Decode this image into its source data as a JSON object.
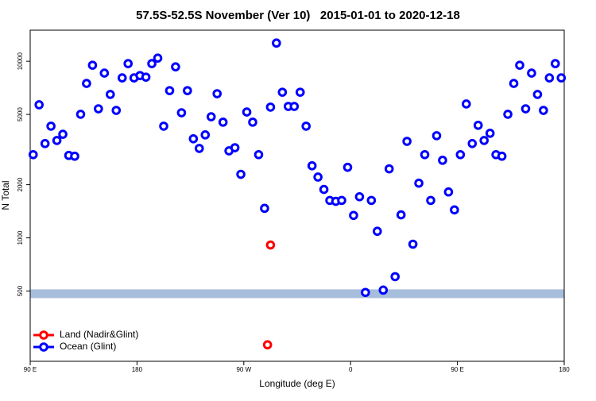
{
  "chart_data": {
    "type": "scatter",
    "title": "57.5S-52.5S November (Ver 10)   2015-01-01 to 2020-12-18",
    "xlabel": "Longitude (deg E)",
    "ylabel": "N Total",
    "xlim": [
      90,
      540
    ],
    "xticks": [
      {
        "value": 90,
        "label": "90 E"
      },
      {
        "value": 180,
        "label": "180"
      },
      {
        "value": 270,
        "label": "90 W"
      },
      {
        "value": 360,
        "label": "0"
      },
      {
        "value": 450,
        "label": "90 E"
      },
      {
        "value": 540,
        "label": "180"
      }
    ],
    "ylim": [
      200,
      15000
    ],
    "log_y": true,
    "yticks": [
      500,
      1000,
      2000,
      5000,
      10000
    ],
    "band": [
      456,
      511
    ],
    "band_color": "#a6bddb",
    "legend": "bottom-left",
    "series": [
      {
        "name": "Land (Nadir&Glint)",
        "color": "#ff0000",
        "x": [
          292.5,
          290
        ],
        "values": [
          911,
          248
        ]
      },
      {
        "name": "Ocean (Glint)",
        "color": "#0000ff",
        "x": [
          92.5,
          97.5,
          102.5,
          107.5,
          112.5,
          117.5,
          122.5,
          127.5,
          132.5,
          137.5,
          142.5,
          147.5,
          152.5,
          157.5,
          162.5,
          167.5,
          172.5,
          177.5,
          182.5,
          187.5,
          192.5,
          197.5,
          202.5,
          207.5,
          212.5,
          217.5,
          222.5,
          227.5,
          232.5,
          237.5,
          242.5,
          247.5,
          252.5,
          257.5,
          262.5,
          267.5,
          272.5,
          277.5,
          282.5,
          287.5,
          292.5,
          297.5,
          302.5,
          307.5,
          312.5,
          317.5,
          322.5,
          327.5,
          332.5,
          337.5,
          342.5,
          347.5,
          352.5,
          357.5,
          362.5,
          367.5,
          372.5,
          377.5,
          382.5,
          387.5,
          392.5,
          397.5,
          402.5,
          407.5,
          412.5,
          417.5,
          422.5,
          427.5,
          432.5,
          437.5,
          442.5,
          447.5,
          452.5,
          457.5,
          462.5,
          467.5,
          472.5,
          477.5,
          482.5,
          487.5,
          492.5,
          497.5,
          502.5,
          507.5,
          512.5,
          517.5,
          522.5,
          527.5,
          532.5,
          537.5
        ],
        "values": [
          2960,
          5670,
          3420,
          4290,
          3560,
          3860,
          2930,
          2900,
          5010,
          7490,
          9500,
          5380,
          8570,
          6490,
          5270,
          8050,
          9700,
          8050,
          8300,
          8130,
          9700,
          10420,
          4290,
          6820,
          9300,
          5110,
          6820,
          3640,
          3210,
          3830,
          4850,
          6550,
          4520,
          3110,
          3240,
          2290,
          5160,
          4520,
          2960,
          1470,
          5500,
          12680,
          6680,
          5550,
          5550,
          6680,
          4290,
          2560,
          2210,
          1880,
          1630,
          1610,
          1630,
          2510,
          1340,
          1710,
          491,
          1630,
          1090,
          506,
          2460,
          603,
          1350,
          3520,
          921,
          2040,
          2960,
          1630,
          3790,
          2750,
          1820,
          1440,
          2960,
          5730,
          3420,
          4340,
          3560,
          3910,
          2960,
          2900,
          5010,
          7490,
          9500,
          5380,
          8570,
          6490,
          5270,
          8050,
          9700,
          8050
        ]
      }
    ]
  }
}
